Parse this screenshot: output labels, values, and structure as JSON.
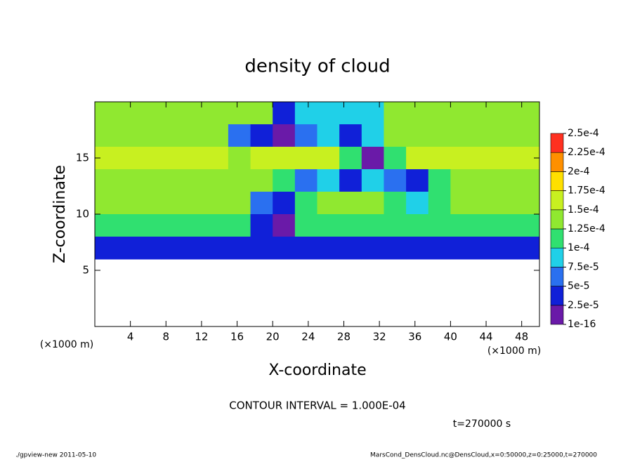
{
  "chart_data": {
    "type": "heatmap",
    "title": "density of cloud",
    "xlabel": "X-coordinate",
    "ylabel": "Z-coordinate",
    "x_unit": "(×1000 m)",
    "y_unit": "(×1000 m)",
    "xlim": [
      0,
      50
    ],
    "ylim": [
      0,
      20
    ],
    "xticks": [
      4,
      8,
      12,
      16,
      20,
      24,
      28,
      32,
      36,
      40,
      44,
      48
    ],
    "yticks": [
      5,
      10,
      15
    ],
    "x_edges": [
      0,
      2.5,
      5,
      7.5,
      10,
      12.5,
      15,
      17.5,
      20,
      22.5,
      25,
      27.5,
      30,
      32.5,
      35,
      37.5,
      40,
      42.5,
      45,
      47.5,
      50
    ],
    "y_edges": [
      20,
      18,
      16,
      14,
      12,
      10,
      8,
      6,
      4,
      2,
      0
    ],
    "values": [
      [
        0.00014,
        0.00014,
        0.00014,
        0.00014,
        0.00014,
        0.00014,
        0.00014,
        0.00014,
        3e-05,
        8e-05,
        9e-05,
        9e-05,
        9e-05,
        0.00014,
        0.00014,
        0.00014,
        0.00014,
        0.00014,
        0.00014,
        0.00014
      ],
      [
        0.000145,
        0.000145,
        0.000145,
        0.000145,
        0.000145,
        0.000145,
        6e-05,
        4e-05,
        2e-05,
        5e-05,
        8e-05,
        3e-05,
        8e-05,
        0.000145,
        0.000145,
        0.000145,
        0.000145,
        0.000145,
        0.000145,
        0.000145
      ],
      [
        0.00015,
        0.00015,
        0.00015,
        0.00015,
        0.00015,
        0.00015,
        0.00013,
        0.00015,
        0.00015,
        0.00015,
        0.00015,
        0.00011,
        2e-05,
        0.0001,
        0.00015,
        0.00015,
        0.00015,
        0.00015,
        0.00015,
        0.00015
      ],
      [
        0.00014,
        0.00014,
        0.00014,
        0.00014,
        0.00014,
        0.00014,
        0.00014,
        0.00014,
        0.00011,
        6e-05,
        8e-05,
        3e-05,
        9e-05,
        6e-05,
        4e-05,
        0.0001,
        0.00014,
        0.00014,
        0.00014,
        0.00014
      ],
      [
        0.000135,
        0.000135,
        0.000135,
        0.000135,
        0.000135,
        0.000135,
        0.000135,
        5e-05,
        3e-05,
        0.00012,
        0.000135,
        0.000135,
        0.000135,
        0.00012,
        9e-05,
        0.00011,
        0.000135,
        0.000135,
        0.000135,
        0.000135
      ],
      [
        0.00011,
        0.00011,
        0.00011,
        0.00011,
        0.00011,
        0.00011,
        0.00011,
        4e-05,
        2e-05,
        0.0001,
        0.00011,
        0.00011,
        0.00011,
        0.00011,
        0.00011,
        0.00011,
        0.00011,
        0.00011,
        0.00011,
        0.00011
      ],
      [
        4e-05,
        4e-05,
        4e-05,
        4e-05,
        4e-05,
        4e-05,
        4e-05,
        4e-05,
        4e-05,
        4e-05,
        4e-05,
        4e-05,
        4e-05,
        4e-05,
        4e-05,
        4e-05,
        4e-05,
        4e-05,
        4e-05,
        4e-05
      ],
      [
        null,
        null,
        null,
        null,
        null,
        null,
        null,
        null,
        null,
        null,
        null,
        null,
        null,
        null,
        null,
        null,
        null,
        null,
        null,
        null
      ],
      [
        null,
        null,
        null,
        null,
        null,
        null,
        null,
        null,
        null,
        null,
        null,
        null,
        null,
        null,
        null,
        null,
        null,
        null,
        null,
        null
      ],
      [
        null,
        null,
        null,
        null,
        null,
        null,
        null,
        null,
        null,
        null,
        null,
        null,
        null,
        null,
        null,
        null,
        null,
        null,
        null,
        null
      ]
    ],
    "levels": [
      {
        "value": 1e-16,
        "label": "1e-16"
      },
      {
        "value": 2.5e-05,
        "label": "2.5e-5"
      },
      {
        "value": 5e-05,
        "label": "5e-5"
      },
      {
        "value": 7.5e-05,
        "label": "7.5e-5"
      },
      {
        "value": 0.0001,
        "label": "1e-4"
      },
      {
        "value": 0.000125,
        "label": "1.25e-4"
      },
      {
        "value": 0.00015,
        "label": "1.5e-4"
      },
      {
        "value": 0.000175,
        "label": "1.75e-4"
      },
      {
        "value": 0.0002,
        "label": "2e-4"
      },
      {
        "value": 0.000225,
        "label": "2.25e-4"
      },
      {
        "value": 0.00025,
        "label": "2.5e-4"
      }
    ],
    "colors": [
      "#6a1aa8",
      "#1020d8",
      "#2a70f0",
      "#20d0e8",
      "#30e070",
      "#90e830",
      "#c8f020",
      "#ffe000",
      "#ff9000",
      "#ff3020"
    ],
    "contour_note": "CONTOUR INTERVAL = 1.000E-04",
    "time_label": "t=270000 s",
    "footer_left": "./gpview-new  2011-05-10",
    "footer_right": "MarsCond_DensCloud.nc@DensCloud,x=0:50000,z=0:25000,t=270000"
  }
}
